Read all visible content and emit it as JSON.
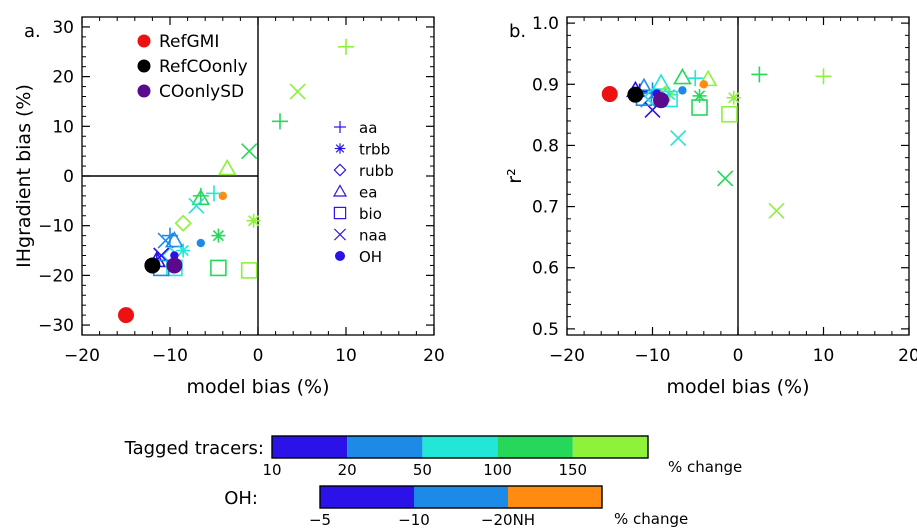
{
  "colors": {
    "RefGMI": "#ee1111",
    "RefCOonly": "#000000",
    "COonlySD": "#5a0a8c",
    "c10": "#2a12e8",
    "c20": "#1e8ae8",
    "c50": "#22e6d6",
    "c100": "#26d85a",
    "c150": "#8ef23a",
    "oh5": "#2a12e8",
    "oh10": "#1e8ae8",
    "oh20NH": "#ff8c10"
  },
  "legend_refs": [
    {
      "label": "RefGMI",
      "color": "#ee1111"
    },
    {
      "label": "RefCOonly",
      "color": "#000000"
    },
    {
      "label": "COonlySD",
      "color": "#5a0a8c"
    }
  ],
  "legend_markers": [
    {
      "label": "aa",
      "marker": "plus"
    },
    {
      "label": "trbb",
      "marker": "asterisk"
    },
    {
      "label": "rubb",
      "marker": "diamond"
    },
    {
      "label": "ea",
      "marker": "triangle"
    },
    {
      "label": "bio",
      "marker": "square"
    },
    {
      "label": "naa",
      "marker": "cross"
    },
    {
      "label": "OH",
      "marker": "dot"
    }
  ],
  "colorbars": [
    {
      "label": "Tagged tracers:",
      "colors": [
        "#2a12e8",
        "#1e8ae8",
        "#22e6d6",
        "#26d85a",
        "#8ef23a"
      ],
      "ticks": [
        "10",
        "20",
        "50",
        "100",
        "150"
      ],
      "unit": "% change"
    },
    {
      "label": "OH:",
      "colors": [
        "#2a12e8",
        "#1e8ae8",
        "#ff8c10"
      ],
      "ticks": [
        "−5",
        "−10",
        "−20NH"
      ],
      "unit": "% change"
    }
  ],
  "chart_data": [
    {
      "type": "scatter",
      "panel_label": "a.",
      "xlabel": "model bias (%)",
      "ylabel": "IHgradient bias (%)",
      "xlim": [
        -20,
        20
      ],
      "ylim": [
        -32,
        32
      ],
      "xticks": [
        -20,
        -10,
        0,
        10,
        20
      ],
      "yticks": [
        -30,
        -20,
        -10,
        0,
        10,
        20,
        30
      ],
      "yticklabels": [
        "−30",
        "−20",
        "−10",
        "0",
        "10",
        "20",
        "30"
      ],
      "xticklabels": [
        "−20",
        "−10",
        "0",
        "10",
        "20"
      ],
      "reference_lines": {
        "x": 0,
        "y": 0
      },
      "points": [
        {
          "marker": "plus",
          "color": "c150",
          "x": 10,
          "y": 26
        },
        {
          "marker": "cross",
          "color": "c150",
          "x": 4.5,
          "y": 17
        },
        {
          "marker": "plus",
          "color": "c100",
          "x": 2.5,
          "y": 11
        },
        {
          "marker": "cross",
          "color": "c100",
          "x": -1,
          "y": 5
        },
        {
          "marker": "triangle",
          "color": "c150",
          "x": -3.5,
          "y": 1.5
        },
        {
          "marker": "dot",
          "color": "oh20NH",
          "x": -4,
          "y": -4
        },
        {
          "marker": "plus",
          "color": "c50",
          "x": -5,
          "y": -3.5
        },
        {
          "marker": "plus",
          "color": "c100",
          "x": -6.5,
          "y": -4
        },
        {
          "marker": "triangle",
          "color": "c100",
          "x": -6.5,
          "y": -4.5
        },
        {
          "marker": "cross",
          "color": "c50",
          "x": -7,
          "y": -6
        },
        {
          "marker": "asterisk",
          "color": "c150",
          "x": -0.5,
          "y": -9
        },
        {
          "marker": "asterisk",
          "color": "c100",
          "x": -4.5,
          "y": -12
        },
        {
          "marker": "diamond",
          "color": "c150",
          "x": -8.5,
          "y": -9.5
        },
        {
          "marker": "plus",
          "color": "c20",
          "x": -10,
          "y": -12
        },
        {
          "marker": "cross",
          "color": "c20",
          "x": -10.5,
          "y": -13
        },
        {
          "marker": "triangle",
          "color": "c20",
          "x": -9.5,
          "y": -13
        },
        {
          "marker": "dot",
          "color": "oh10",
          "x": -6.5,
          "y": -13.5
        },
        {
          "marker": "asterisk",
          "color": "c50",
          "x": -8.5,
          "y": -15
        },
        {
          "marker": "diamond",
          "color": "c50",
          "x": -10,
          "y": -16
        },
        {
          "marker": "cross",
          "color": "c10",
          "x": -11,
          "y": -16
        },
        {
          "marker": "dot",
          "color": "oh5",
          "x": -9.5,
          "y": -16
        },
        {
          "marker": "triangle",
          "color": "c10",
          "x": -11.5,
          "y": -17
        },
        {
          "marker": "plus",
          "color": "c10",
          "x": -11.5,
          "y": -17
        },
        {
          "marker": "square",
          "color": "c100",
          "x": -4.5,
          "y": -18.5
        },
        {
          "marker": "square",
          "color": "c150",
          "x": -1,
          "y": -19
        },
        {
          "marker": "square",
          "color": "c50",
          "x": -9.5,
          "y": -18.5
        },
        {
          "marker": "square",
          "color": "c20",
          "x": -11,
          "y": -18.5
        },
        {
          "marker": "bigdot",
          "color": "COonlySD",
          "x": -9.5,
          "y": -18
        },
        {
          "marker": "bigdot",
          "color": "RefCOonly",
          "x": -12,
          "y": -18
        },
        {
          "marker": "bigdot",
          "color": "RefGMI",
          "x": -15,
          "y": -28
        }
      ]
    },
    {
      "type": "scatter",
      "panel_label": "b.",
      "xlabel": "model bias (%)",
      "ylabel": "r²",
      "xlim": [
        -20,
        20
      ],
      "ylim": [
        0.49,
        1.01
      ],
      "xticks": [
        -20,
        -10,
        0,
        10,
        20
      ],
      "yticks": [
        0.5,
        0.6,
        0.7,
        0.8,
        0.9,
        1.0
      ],
      "yticklabels": [
        "0.5",
        "0.6",
        "0.7",
        "0.8",
        "0.9",
        "1.0"
      ],
      "xticklabels": [
        "−20",
        "−10",
        "0",
        "10",
        "20"
      ],
      "reference_lines": {
        "x": 0
      },
      "points": [
        {
          "marker": "plus",
          "color": "c150",
          "x": 10,
          "y": 0.913
        },
        {
          "marker": "plus",
          "color": "c100",
          "x": 2.5,
          "y": 0.916
        },
        {
          "marker": "cross",
          "color": "c150",
          "x": 4.5,
          "y": 0.693
        },
        {
          "marker": "cross",
          "color": "c100",
          "x": -1.5,
          "y": 0.746
        },
        {
          "marker": "asterisk",
          "color": "c150",
          "x": -0.5,
          "y": 0.878
        },
        {
          "marker": "asterisk",
          "color": "c100",
          "x": -4.5,
          "y": 0.881
        },
        {
          "marker": "triangle",
          "color": "c150",
          "x": -3.5,
          "y": 0.908
        },
        {
          "marker": "triangle",
          "color": "c100",
          "x": -6.5,
          "y": 0.911
        },
        {
          "marker": "plus",
          "color": "c50",
          "x": -5,
          "y": 0.91
        },
        {
          "marker": "dot",
          "color": "oh20NH",
          "x": -4,
          "y": 0.9
        },
        {
          "marker": "dot",
          "color": "oh10",
          "x": -6.5,
          "y": 0.89
        },
        {
          "marker": "cross",
          "color": "c50",
          "x": -7,
          "y": 0.812
        },
        {
          "marker": "square",
          "color": "c150",
          "x": -1,
          "y": 0.851
        },
        {
          "marker": "square",
          "color": "c100",
          "x": -4.5,
          "y": 0.862
        },
        {
          "marker": "triangle",
          "color": "c50",
          "x": -9,
          "y": 0.902
        },
        {
          "marker": "asterisk",
          "color": "c50",
          "x": -8,
          "y": 0.883
        },
        {
          "marker": "diamond",
          "color": "c150",
          "x": -8.5,
          "y": 0.884
        },
        {
          "marker": "square",
          "color": "c50",
          "x": -8,
          "y": 0.876
        },
        {
          "marker": "triangle",
          "color": "c20",
          "x": -11,
          "y": 0.895
        },
        {
          "marker": "plus",
          "color": "c20",
          "x": -10,
          "y": 0.89
        },
        {
          "marker": "cross",
          "color": "c20",
          "x": -10.5,
          "y": 0.875
        },
        {
          "marker": "cross",
          "color": "c10",
          "x": -10,
          "y": 0.858
        },
        {
          "marker": "square",
          "color": "c20",
          "x": -11,
          "y": 0.878
        },
        {
          "marker": "diamond",
          "color": "c50",
          "x": -10,
          "y": 0.88
        },
        {
          "marker": "plus",
          "color": "c10",
          "x": -11.5,
          "y": 0.888
        },
        {
          "marker": "triangle",
          "color": "c10",
          "x": -12,
          "y": 0.89
        },
        {
          "marker": "dot",
          "color": "oh5",
          "x": -9.5,
          "y": 0.885
        },
        {
          "marker": "bigdot",
          "color": "COonlySD",
          "x": -9,
          "y": 0.874
        },
        {
          "marker": "bigdot",
          "color": "RefCOonly",
          "x": -12,
          "y": 0.883
        },
        {
          "marker": "bigdot",
          "color": "RefGMI",
          "x": -15,
          "y": 0.884
        }
      ]
    }
  ]
}
